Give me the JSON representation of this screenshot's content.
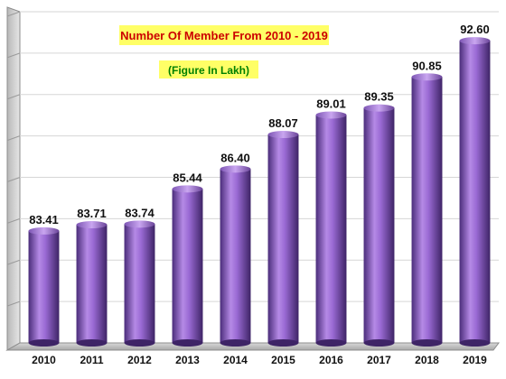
{
  "chart_data": {
    "type": "bar",
    "title": "Number Of Member From 2010 - 2019",
    "subtitle": "(Figure In Lakh)",
    "xlabel": "",
    "ylabel": "",
    "categories": [
      "2010",
      "2011",
      "2012",
      "2013",
      "2014",
      "2015",
      "2016",
      "2017",
      "2018",
      "2019"
    ],
    "values": [
      83.41,
      83.71,
      83.74,
      85.44,
      86.4,
      88.07,
      89.01,
      89.35,
      90.85,
      92.6
    ],
    "data_labels": [
      "83.41",
      "83.71",
      "83.74",
      "85.44",
      "86.40",
      "88.07",
      "89.01",
      "89.35",
      "90.85",
      "92.60"
    ],
    "ylim": [
      78,
      94
    ],
    "grid": true,
    "legend": "none",
    "bar_color": "#8e5cc8",
    "title_box_color": "#ffff66",
    "title_text_color": "#cc0000",
    "subtitle_text_color": "#008000"
  }
}
